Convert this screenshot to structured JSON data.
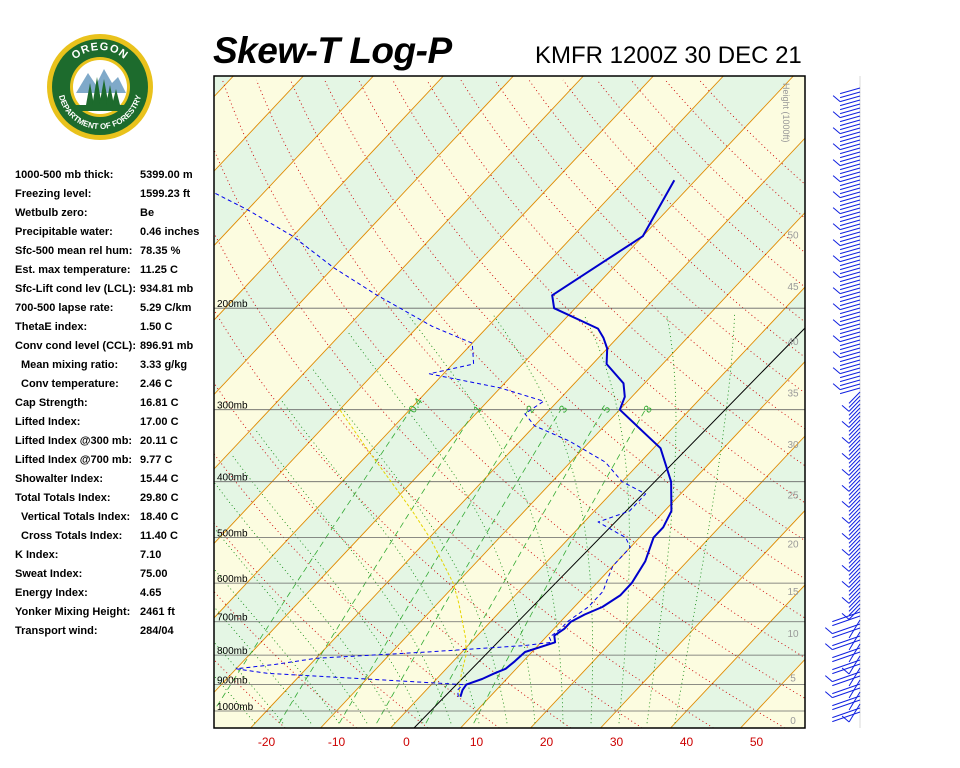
{
  "header": {
    "title": "Skew-T Log-P",
    "station": "KMFR 1200Z 30 DEC 21"
  },
  "logo": {
    "top_text": "OREGON",
    "bottom_text": "DEPARTMENT OF FORESTRY",
    "colors": {
      "ring": "#1d6b2d",
      "gold": "#e9c21c"
    }
  },
  "stats": [
    {
      "label": "1000-500 mb thick:",
      "value": "5399.00 m"
    },
    {
      "label": "Freezing level:",
      "value": "1599.23 ft"
    },
    {
      "label": "Wetbulb zero:",
      "value": "Be"
    },
    {
      "label": "Precipitable water:",
      "value": "0.46 inches"
    },
    {
      "label": "Sfc-500 mean rel hum:",
      "value": "78.35 %"
    },
    {
      "label": "Est. max temperature:",
      "value": "11.25 C"
    },
    {
      "label": "Sfc-Lift cond lev (LCL):",
      "value": "934.81 mb"
    },
    {
      "label": "700-500 lapse rate:",
      "value": "5.29 C/km"
    },
    {
      "label": "ThetaE index:",
      "value": "1.50 C"
    },
    {
      "label": "Conv cond level (CCL):",
      "value": "896.91 mb"
    },
    {
      "label": "Mean mixing ratio:",
      "value": "3.33 g/kg",
      "indent": true
    },
    {
      "label": "Conv temperature:",
      "value": "2.46 C",
      "indent": true
    },
    {
      "label": "Cap Strength:",
      "value": "16.81 C"
    },
    {
      "label": "Lifted Index:",
      "value": "17.00 C"
    },
    {
      "label": "Lifted Index @300 mb:",
      "value": "20.11 C"
    },
    {
      "label": "Lifted Index @700 mb:",
      "value": "9.77 C"
    },
    {
      "label": "Showalter Index:",
      "value": "15.44 C"
    },
    {
      "label": "Total Totals Index:",
      "value": "29.80 C"
    },
    {
      "label": "Vertical Totals Index:",
      "value": "18.40 C",
      "indent": true
    },
    {
      "label": "Cross Totals Index:",
      "value": "11.40 C",
      "indent": true
    },
    {
      "label": "K Index:",
      "value": "7.10"
    },
    {
      "label": "Sweat Index:",
      "value": "75.00"
    },
    {
      "label": "Energy Index:",
      "value": "4.65"
    },
    {
      "label": "Yonker Mixing Height:",
      "value": "2461 ft"
    },
    {
      "label": "Transport wind:",
      "value": "284/04"
    }
  ],
  "chart_data": {
    "type": "line",
    "x_ticks": [
      -20,
      -10,
      0,
      10,
      20,
      30,
      40,
      50
    ],
    "xlim": [
      -27,
      57
    ],
    "ylim_mb": [
      1050,
      100
    ],
    "pressure_levels": [
      {
        "p": 200,
        "label": "200mb"
      },
      {
        "p": 300,
        "label": "300mb"
      },
      {
        "p": 400,
        "label": "400mb"
      },
      {
        "p": 500,
        "label": "500mb"
      },
      {
        "p": 600,
        "label": "600mb"
      },
      {
        "p": 700,
        "label": "700mb"
      },
      {
        "p": 800,
        "label": "800mb"
      },
      {
        "p": 900,
        "label": "900mb"
      },
      {
        "p": 1000,
        "label": "1000mb"
      }
    ],
    "height_axis": {
      "title": "Height (1000ft)",
      "ticks": [
        {
          "label": "0",
          "p": 1037
        },
        {
          "label": "5",
          "p": 875
        },
        {
          "label": "10",
          "p": 732
        },
        {
          "label": "15",
          "p": 619
        },
        {
          "label": "20",
          "p": 512
        },
        {
          "label": "25",
          "p": 421
        },
        {
          "label": "30",
          "p": 344
        },
        {
          "label": "35",
          "p": 280
        },
        {
          "label": "40",
          "p": 228
        },
        {
          "label": "45",
          "p": 183
        },
        {
          "label": "50",
          "p": 149
        }
      ]
    },
    "mixing_ratio_labels": [
      "0.4",
      "1",
      "2",
      "3",
      "5",
      "8"
    ],
    "temperature_profile": [
      [
        945,
        5.8
      ],
      [
        920,
        5.2
      ],
      [
        900,
        5.0
      ],
      [
        880,
        6.5
      ],
      [
        860,
        7.5
      ],
      [
        845,
        8.5
      ],
      [
        820,
        8.8
      ],
      [
        790,
        9.0
      ],
      [
        760,
        12.0
      ],
      [
        740,
        11.0
      ],
      [
        720,
        11.5
      ],
      [
        700,
        11.5
      ],
      [
        680,
        12.5
      ],
      [
        660,
        14.0
      ],
      [
        630,
        15.0
      ],
      [
        600,
        15.0
      ],
      [
        550,
        14.0
      ],
      [
        500,
        12.0
      ],
      [
        480,
        12.0
      ],
      [
        450,
        11.0
      ],
      [
        400,
        7.0
      ],
      [
        350,
        1.0
      ],
      [
        300,
        -10.0
      ],
      [
        285,
        -11.0
      ],
      [
        270,
        -13.0
      ],
      [
        250,
        -18.0
      ],
      [
        235,
        -20.0
      ],
      [
        225,
        -22.0
      ],
      [
        217,
        -24.0
      ],
      [
        200,
        -33.0
      ],
      [
        190,
        -35.0
      ],
      [
        150,
        -30.0
      ],
      [
        120,
        -33.0
      ]
    ],
    "dewpoint_profile": [
      [
        945,
        5.5
      ],
      [
        920,
        4.5
      ],
      [
        900,
        4.5
      ],
      [
        880,
        -10.0
      ],
      [
        860,
        -25.0
      ],
      [
        845,
        -30.0
      ],
      [
        830,
        -25.0
      ],
      [
        810,
        -20.0
      ],
      [
        790,
        -5.0
      ],
      [
        770,
        8.0
      ],
      [
        760,
        11.5
      ],
      [
        745,
        10.5
      ],
      [
        720,
        11.0
      ],
      [
        700,
        11.0
      ],
      [
        660,
        12.0
      ],
      [
        620,
        12.0
      ],
      [
        590,
        11.0
      ],
      [
        560,
        10.0
      ],
      [
        520,
        10.0
      ],
      [
        500,
        8.0
      ],
      [
        470,
        2.0
      ],
      [
        450,
        5.0
      ],
      [
        420,
        5.0
      ],
      [
        400,
        0.0
      ],
      [
        370,
        -5.0
      ],
      [
        340,
        -13.0
      ],
      [
        320,
        -20.0
      ],
      [
        305,
        -23.0
      ],
      [
        290,
        -22.0
      ],
      [
        275,
        -30.0
      ],
      [
        260,
        -42.0
      ],
      [
        250,
        -37.0
      ],
      [
        230,
        -40.0
      ],
      [
        215,
        -48.0
      ],
      [
        200,
        -55.0
      ],
      [
        190,
        -60.0
      ],
      [
        170,
        -70.0
      ],
      [
        150,
        -80.0
      ],
      [
        135,
        -90.0
      ],
      [
        125,
        -98.0
      ]
    ],
    "parcel_profile": [
      [
        945,
        5.8
      ],
      [
        934.8,
        5.3
      ],
      [
        900,
        4.0
      ],
      [
        850,
        2.5
      ],
      [
        800,
        1.0
      ],
      [
        750,
        -1.2
      ],
      [
        700,
        -4.0
      ],
      [
        650,
        -7.0
      ],
      [
        600,
        -10.5
      ],
      [
        550,
        -15.0
      ],
      [
        500,
        -20.0
      ],
      [
        450,
        -26.0
      ],
      [
        400,
        -33.0
      ],
      [
        350,
        -41.0
      ],
      [
        300,
        -50.0
      ]
    ],
    "colors": {
      "temperature": "#0000cc",
      "dewpoint": "#0000ee",
      "parcel": "#e6d400",
      "isotherm": "#e08a00",
      "dry_adiabat": "#cc0000",
      "moist_adiabat": "#008000",
      "mixing_ratio": "#33aa33",
      "isobar": "#666666",
      "x_tick_labels": "#cc0000",
      "band_yellow": "#fcfce0",
      "band_green": "#e4f6e4"
    }
  }
}
